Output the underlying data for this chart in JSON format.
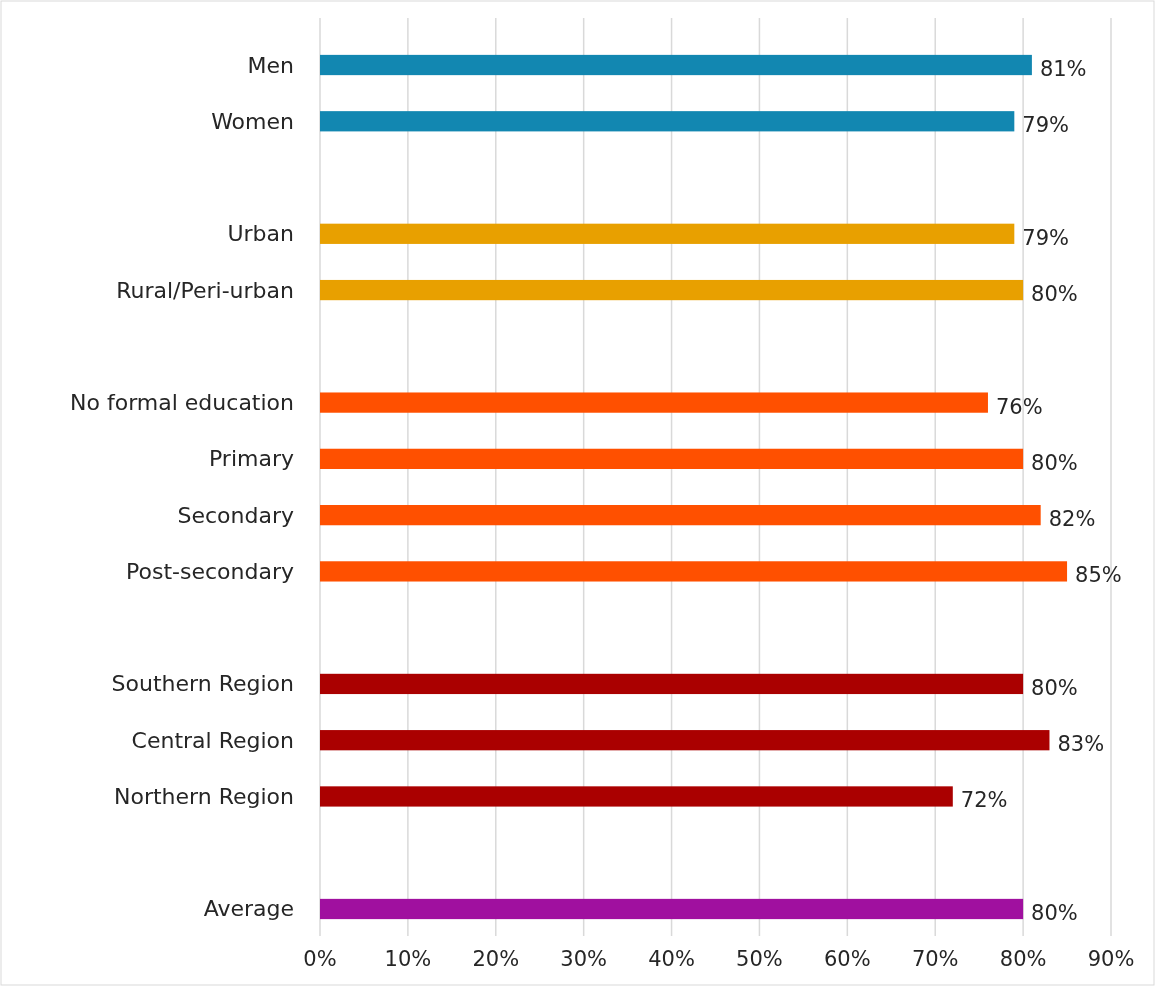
{
  "chart_data": {
    "type": "bar",
    "orientation": "horizontal",
    "categories": [
      "Men",
      "Women",
      null,
      "Urban",
      "Rural/Peri-urban",
      null,
      "No formal education",
      "Primary",
      "Secondary",
      "Post-secondary",
      null,
      "Southern Region",
      "Central Region",
      "Northern Region",
      null,
      "Average"
    ],
    "values": [
      81,
      79,
      null,
      79,
      80,
      null,
      76,
      80,
      82,
      85,
      null,
      80,
      83,
      72,
      null,
      80
    ],
    "colors": [
      "#1287b1",
      "#1287b1",
      null,
      "#e8a000",
      "#e8a000",
      null,
      "#ff5000",
      "#ff5000",
      "#ff5000",
      "#ff5000",
      null,
      "#aa0000",
      "#aa0000",
      "#aa0000",
      null,
      "#a0109f"
    ],
    "value_labels": [
      "81%",
      "79%",
      null,
      "79%",
      "80%",
      null,
      "76%",
      "80%",
      "82%",
      "85%",
      null,
      "80%",
      "83%",
      "72%",
      null,
      "80%"
    ],
    "xlim": [
      0,
      90
    ],
    "xticks": [
      {
        "value": 0,
        "label": "0%"
      },
      {
        "value": 10,
        "label": "10%"
      },
      {
        "value": 20,
        "label": "20%"
      },
      {
        "value": 30,
        "label": "30%"
      },
      {
        "value": 40,
        "label": "40%"
      },
      {
        "value": 50,
        "label": "50%"
      },
      {
        "value": 60,
        "label": "60%"
      },
      {
        "value": 70,
        "label": "70%"
      },
      {
        "value": 80,
        "label": "80%"
      },
      {
        "value": 90,
        "label": "90%"
      }
    ],
    "grid": "x"
  }
}
